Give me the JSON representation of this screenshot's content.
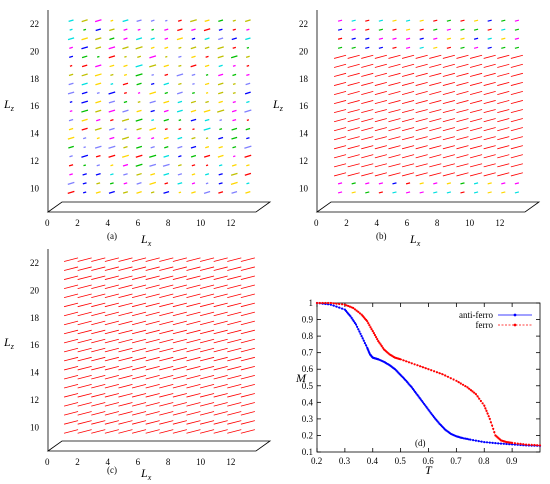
{
  "chart_data": [
    {
      "type": "scatter",
      "panel_label": "(a)",
      "variant": "disordered",
      "x_ticks": [
        "0",
        "2",
        "4",
        "6",
        "8",
        "10",
        "12"
      ],
      "z_ticks": [
        "10",
        "12",
        "14",
        "16",
        "18",
        "20",
        "22"
      ],
      "xlim": [
        0,
        12.8
      ],
      "zlim": [
        9,
        22.6
      ],
      "xlabel_symbol": "L",
      "xlabel_sub": "x",
      "zlabel_symbol": "L",
      "zlabel_sub": "z",
      "spin_colors": [
        "#ff0000",
        "#00c000",
        "#0000ff",
        "#ff00ff",
        "#00e0e0",
        "#ffd700",
        "#c0c000",
        "#8080ff"
      ]
    },
    {
      "type": "scatter",
      "panel_label": "(b)",
      "variant": "partial",
      "x_ticks": [
        "0",
        "2",
        "4",
        "6",
        "8",
        "10",
        "12"
      ],
      "z_ticks": [
        "10",
        "12",
        "14",
        "16",
        "18",
        "20",
        "22"
      ],
      "xlim": [
        0,
        12.8
      ],
      "zlim": [
        9,
        22.6
      ],
      "xlabel_symbol": "L",
      "xlabel_sub": "x",
      "zlabel_symbol": "L",
      "zlabel_sub": "z",
      "spin_colors": [
        "#ff0000",
        "#00c000",
        "#0000ff",
        "#ff00ff",
        "#00e0e0",
        "#ffd700"
      ]
    },
    {
      "type": "scatter",
      "panel_label": "(c)",
      "variant": "ordered",
      "x_ticks": [
        "0",
        "2",
        "4",
        "6",
        "8",
        "10",
        "12"
      ],
      "z_ticks": [
        "10",
        "12",
        "14",
        "16",
        "18",
        "20",
        "22"
      ],
      "xlim": [
        0,
        12.8
      ],
      "zlim": [
        9,
        22.6
      ],
      "xlabel_symbol": "L",
      "xlabel_sub": "x",
      "zlabel_symbol": "L",
      "zlabel_sub": "z",
      "spin_colors": [
        "#ff0000"
      ]
    },
    {
      "type": "line",
      "panel_label": "(d)",
      "xlabel": "T",
      "ylabel": "M",
      "xlim": [
        0.2,
        1.0
      ],
      "ylim": [
        0.1,
        1.0
      ],
      "x_ticks": [
        "0.2",
        "0.3",
        "0.4",
        "0.5",
        "0.6",
        "0.7",
        "0.8",
        "0.9"
      ],
      "y_ticks": [
        "0.1",
        "0.2",
        "0.3",
        "0.4",
        "0.5",
        "0.6",
        "0.7",
        "0.8",
        "0.9",
        "1"
      ],
      "legend_position": "top-right",
      "series": [
        {
          "name": "anti-ferro",
          "color": "#0000ff",
          "x": [
            0.2,
            0.25,
            0.3,
            0.32,
            0.34,
            0.36,
            0.38,
            0.39,
            0.4,
            0.41,
            0.42,
            0.44,
            0.46,
            0.48,
            0.5,
            0.52,
            0.54,
            0.56,
            0.58,
            0.6,
            0.62,
            0.64,
            0.66,
            0.68,
            0.7,
            0.72,
            0.75,
            0.8,
            0.85,
            0.9,
            0.95,
            1.0
          ],
          "y": [
            1.0,
            0.99,
            0.96,
            0.92,
            0.87,
            0.8,
            0.73,
            0.69,
            0.67,
            0.665,
            0.66,
            0.645,
            0.625,
            0.6,
            0.565,
            0.53,
            0.49,
            0.445,
            0.4,
            0.355,
            0.31,
            0.27,
            0.235,
            0.21,
            0.195,
            0.185,
            0.175,
            0.16,
            0.152,
            0.146,
            0.14,
            0.137
          ]
        },
        {
          "name": "ferro",
          "color": "#ff0000",
          "x": [
            0.2,
            0.25,
            0.3,
            0.33,
            0.36,
            0.38,
            0.4,
            0.42,
            0.44,
            0.46,
            0.48,
            0.5,
            0.55,
            0.6,
            0.65,
            0.7,
            0.74,
            0.77,
            0.8,
            0.82,
            0.84,
            0.86,
            0.88,
            0.9,
            0.95,
            1.0
          ],
          "y": [
            1.0,
            1.0,
            0.99,
            0.97,
            0.93,
            0.89,
            0.83,
            0.77,
            0.72,
            0.69,
            0.67,
            0.66,
            0.63,
            0.6,
            0.57,
            0.53,
            0.49,
            0.45,
            0.38,
            0.3,
            0.2,
            0.17,
            0.16,
            0.155,
            0.145,
            0.14
          ]
        }
      ]
    }
  ]
}
